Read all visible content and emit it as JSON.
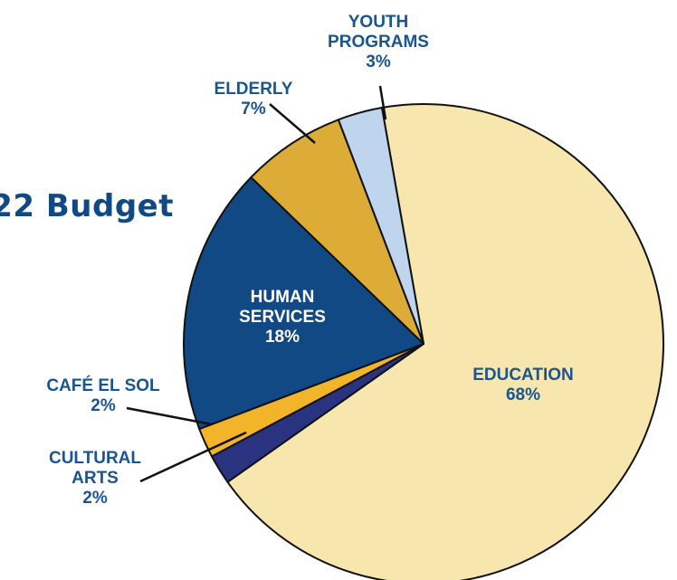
{
  "chart_data": {
    "type": "pie",
    "title": "22 Budget",
    "slices": [
      {
        "label_lines": [
          "EDUCATION",
          "68%"
        ],
        "value": 68,
        "color": "#f7e6ad",
        "label_color": "#1a5590"
      },
      {
        "label_lines": [
          "CULTURAL",
          "ARTS",
          "2%"
        ],
        "value": 2,
        "color": "#2a3380",
        "label_color": "#1a5590"
      },
      {
        "label_lines": [
          "CAFÉ EL SOL",
          "2%"
        ],
        "value": 2,
        "color": "#f2b429",
        "label_color": "#1a5590"
      },
      {
        "label_lines": [
          "HUMAN",
          "SERVICES",
          "18%"
        ],
        "value": 18,
        "color": "#114985",
        "label_color": "#ffffff"
      },
      {
        "label_lines": [
          "ELDERLY",
          "7%"
        ],
        "value": 7,
        "color": "#dcac36",
        "label_color": "#1a5590"
      },
      {
        "label_lines": [
          "YOUTH",
          "PROGRAMS",
          "3%"
        ],
        "value": 3,
        "color": "#bfd5ee",
        "label_color": "#1a5590"
      }
    ],
    "outline_color": "#111111",
    "title_color": "#114985"
  }
}
